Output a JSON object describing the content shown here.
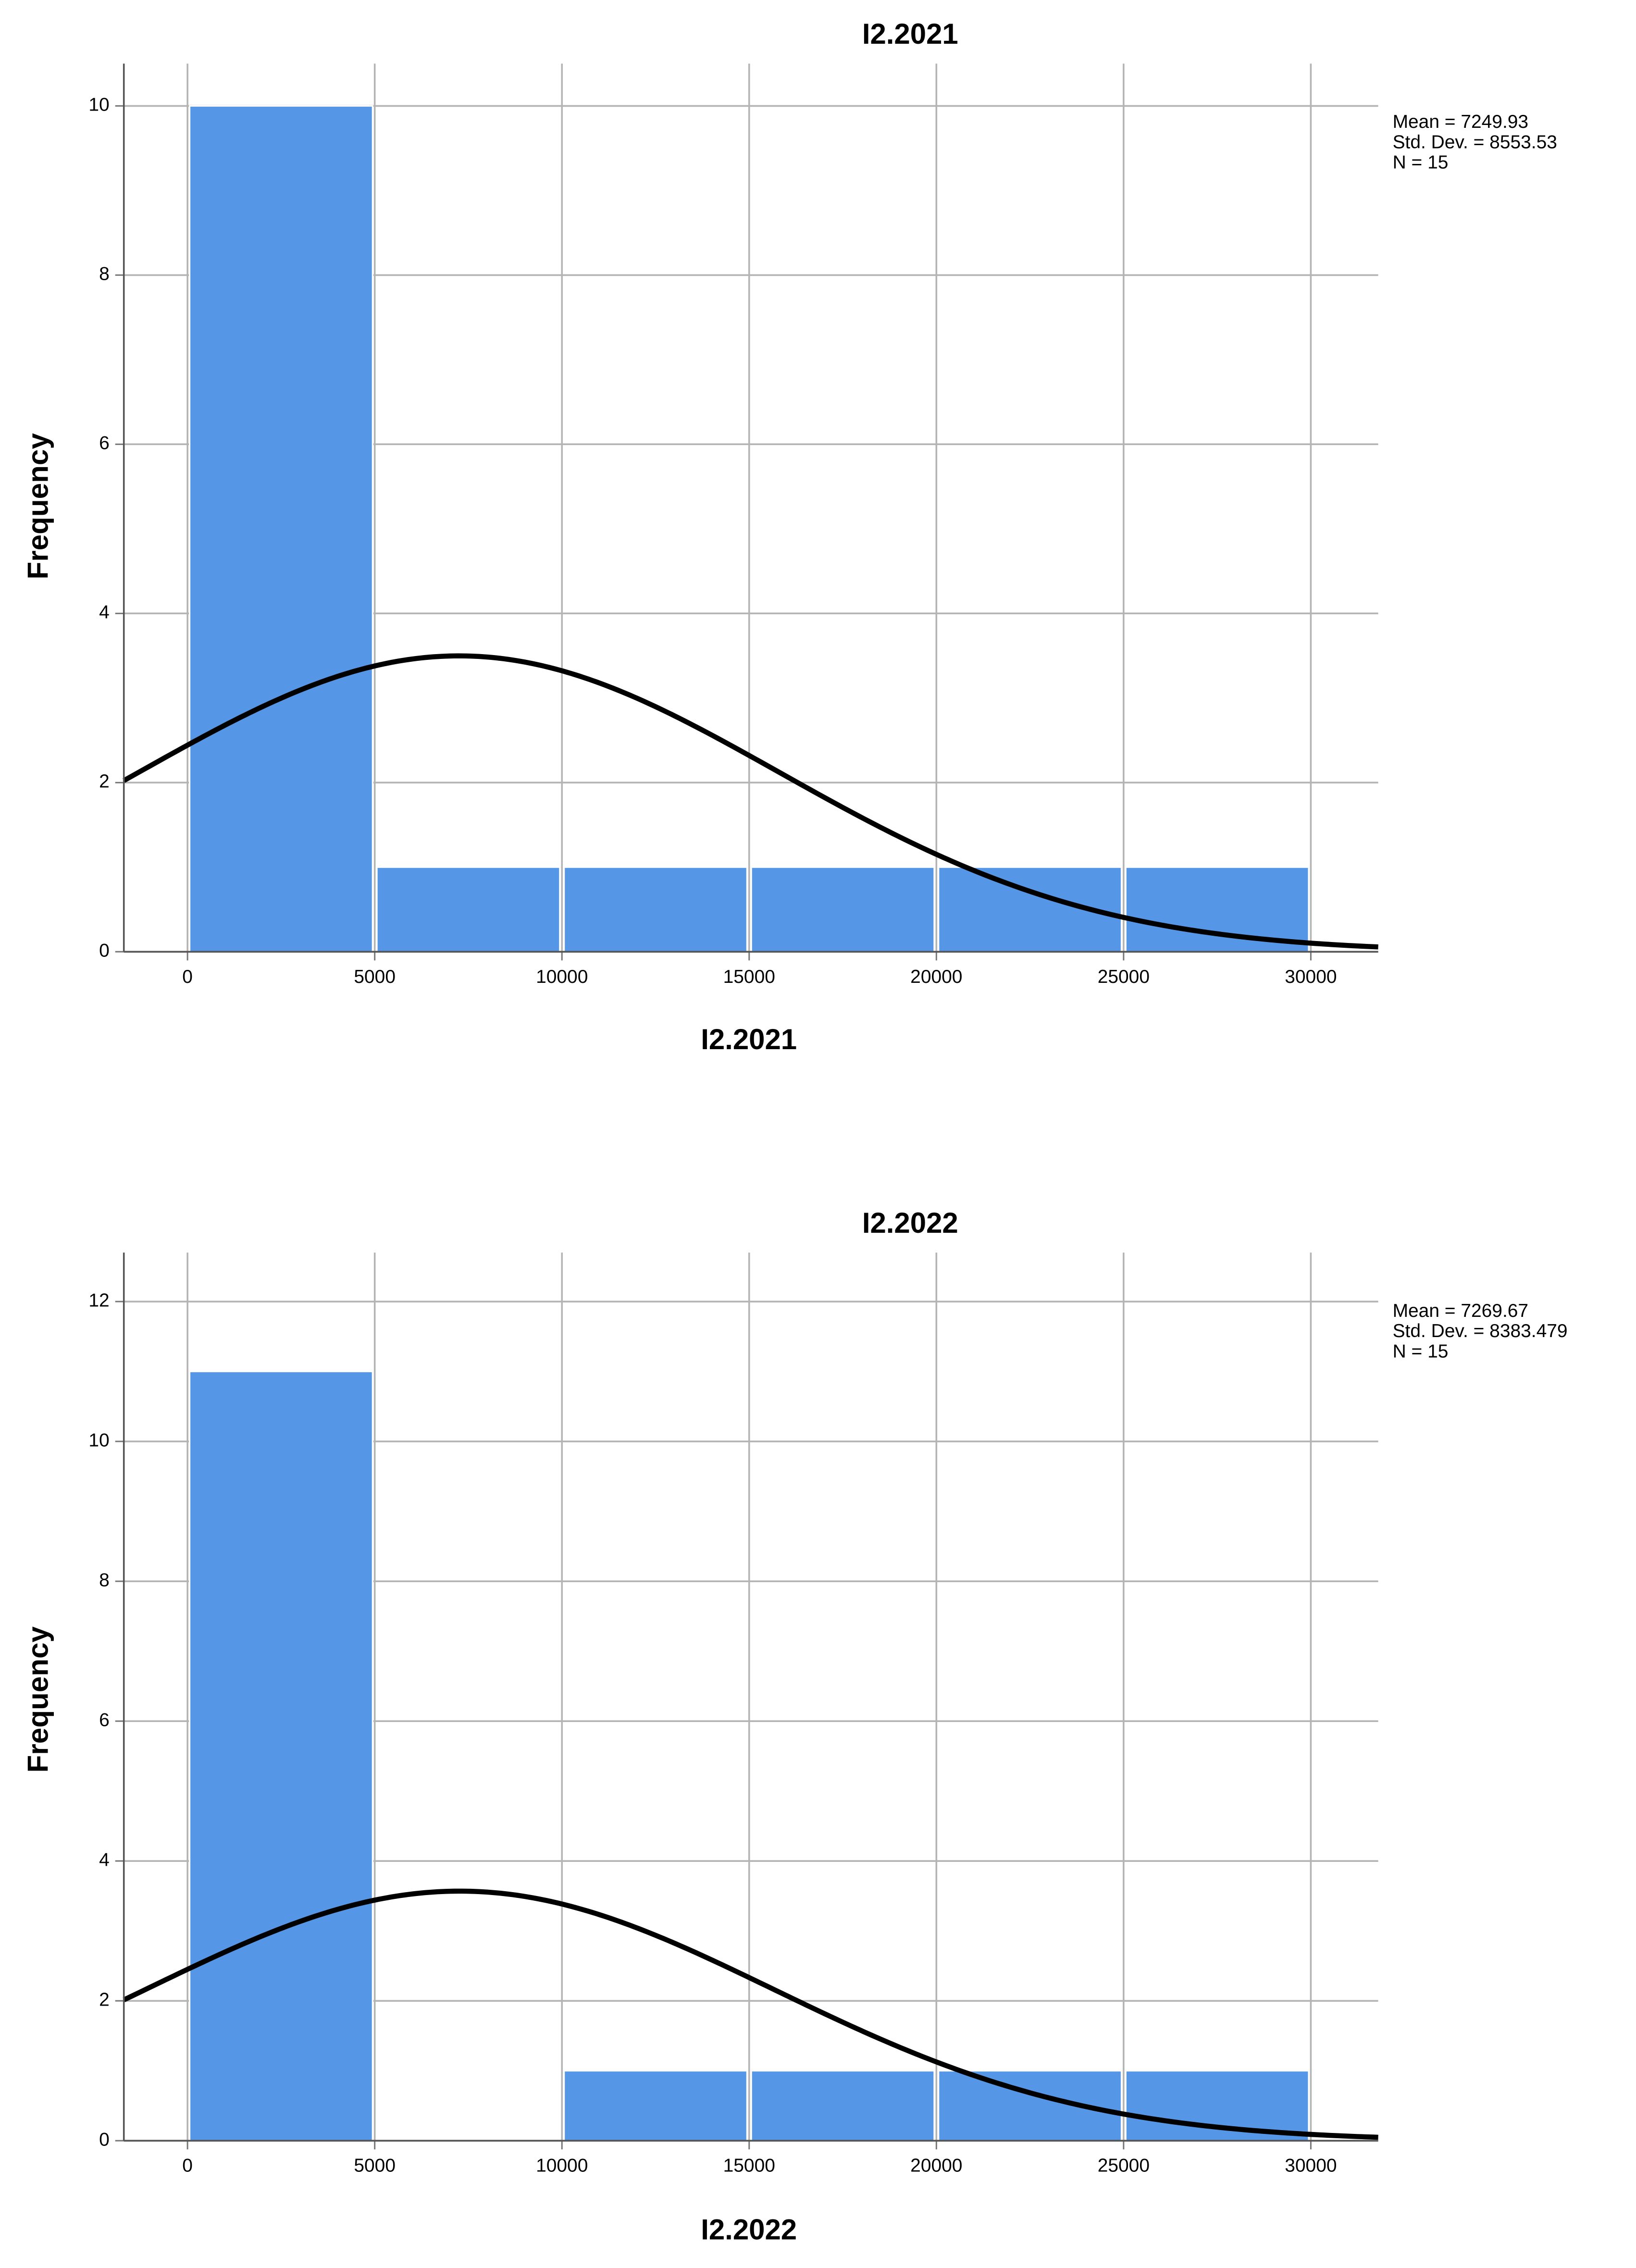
{
  "chart_data": [
    {
      "type": "histogram",
      "title": "I2.2021",
      "x_label": "I2.2021",
      "y_label": "Frequency",
      "bins": [
        0,
        5000,
        10000,
        15000,
        20000,
        25000,
        30000
      ],
      "counts": [
        10,
        1,
        1,
        1,
        1,
        1
      ],
      "color": "#5596e6",
      "xlim": [
        -1700,
        31800
      ],
      "ylim": [
        0,
        10.5
      ],
      "xticks": [
        0,
        5000,
        10000,
        15000,
        20000,
        25000,
        30000
      ],
      "yticks": [
        0,
        2,
        4,
        6,
        8,
        10
      ],
      "grid": true,
      "stats": [
        {
          "value": 7249.93,
          "label": "Mean = 7249.93"
        },
        {
          "value": 8553.53,
          "label": "Std. Dev. = 8553.53"
        },
        {
          "value": 15,
          "label": "N = 15"
        }
      ]
    },
    {
      "type": "histogram",
      "title": "I2.2022",
      "x_label": "I2.2022",
      "y_label": "Frequency",
      "bins": [
        0,
        5000,
        10000,
        15000,
        20000,
        25000,
        30000
      ],
      "counts": [
        11,
        0,
        1,
        1,
        1,
        1
      ],
      "color": "#5596e6",
      "xlim": [
        -1700,
        31800
      ],
      "ylim": [
        0,
        12.7
      ],
      "xticks": [
        0,
        5000,
        10000,
        15000,
        20000,
        25000,
        30000
      ],
      "yticks": [
        0,
        2,
        4,
        6,
        8,
        10,
        12
      ],
      "grid": true,
      "stats": [
        {
          "value": 7269.67,
          "label": "Mean = 7269.67"
        },
        {
          "value": 8383.479,
          "label": "Std. Dev. = 8383.479"
        },
        {
          "value": 15,
          "label": "N = 15"
        }
      ]
    }
  ]
}
